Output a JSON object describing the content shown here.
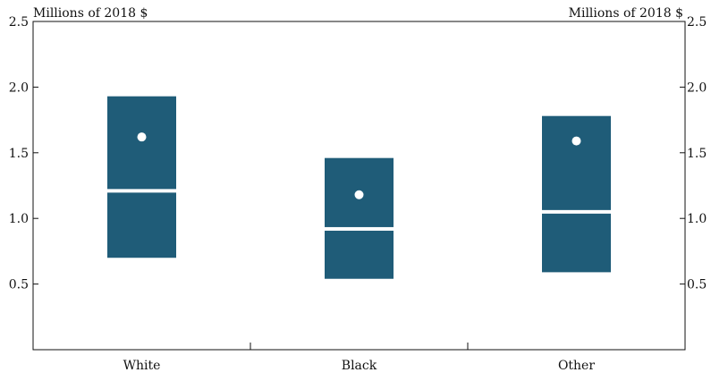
{
  "chart_data": {
    "type": "box",
    "categories": [
      "White",
      "Black",
      "Other"
    ],
    "series": [
      {
        "stat": "box",
        "low": [
          0.7,
          0.54,
          0.59
        ],
        "high": [
          1.93,
          1.46,
          1.78
        ]
      },
      {
        "stat": "median",
        "values": [
          1.21,
          0.92,
          1.05
        ]
      },
      {
        "stat": "mean",
        "values": [
          1.62,
          1.18,
          1.59
        ]
      }
    ],
    "ylabel_left": "Millions of 2018 $",
    "ylabel_right": "Millions of 2018 $",
    "ylim": [
      0,
      2.5
    ],
    "yticks": [
      0.5,
      1.0,
      1.5,
      2.0,
      2.5
    ],
    "ytick_labels": [
      "0.5",
      "1.0",
      "1.5",
      "2.0",
      "2.5"
    ],
    "grid": false,
    "colors": {
      "box": "#1f5c78",
      "marker": "#ffffff",
      "axis": "#111111"
    }
  }
}
